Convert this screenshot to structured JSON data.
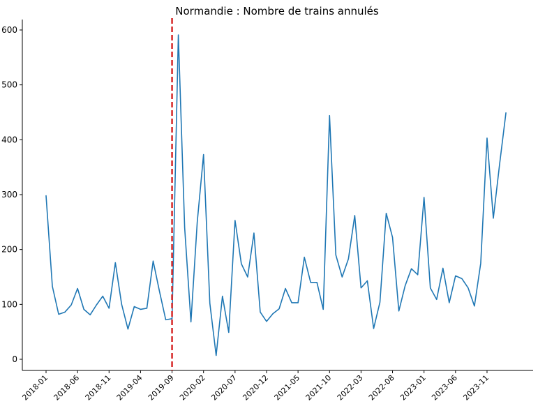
{
  "chart_data": {
    "type": "line",
    "title": "Normandie : Nombre de trains annulés",
    "xlabel": "",
    "ylabel": "",
    "x_start": "2018-01",
    "x_tick_labels": [
      "2018-01",
      "2018-06",
      "2018-11",
      "2019-04",
      "2019-09",
      "2020-02",
      "2020-07",
      "2020-12",
      "2021-05",
      "2021-10",
      "2022-03",
      "2022-08",
      "2023-01",
      "2023-06",
      "2023-11"
    ],
    "y_ticks": [
      0,
      100,
      200,
      300,
      400,
      500,
      600
    ],
    "ylim": [
      -20,
      620
    ],
    "grid": false,
    "series": [
      {
        "color": "#1f77b4",
        "values": [
          298,
          133,
          82,
          86,
          99,
          129,
          91,
          81,
          99,
          115,
          93,
          176,
          100,
          55,
          96,
          91,
          93,
          179,
          124,
          72,
          74,
          591,
          240,
          68,
          250,
          373,
          102,
          7,
          115,
          49,
          253,
          174,
          150,
          230,
          86,
          69,
          83,
          92,
          129,
          103,
          103,
          186,
          140,
          140,
          91,
          444,
          190,
          150,
          183,
          262,
          130,
          143,
          56,
          104,
          266,
          222,
          88,
          134,
          165,
          154,
          295,
          130,
          109,
          166,
          103,
          152,
          147,
          130,
          97,
          175,
          403,
          257,
          356,
          449
        ]
      }
    ],
    "vline": {
      "x": "2019-09",
      "color": "#d62728",
      "style": "dashed"
    }
  }
}
